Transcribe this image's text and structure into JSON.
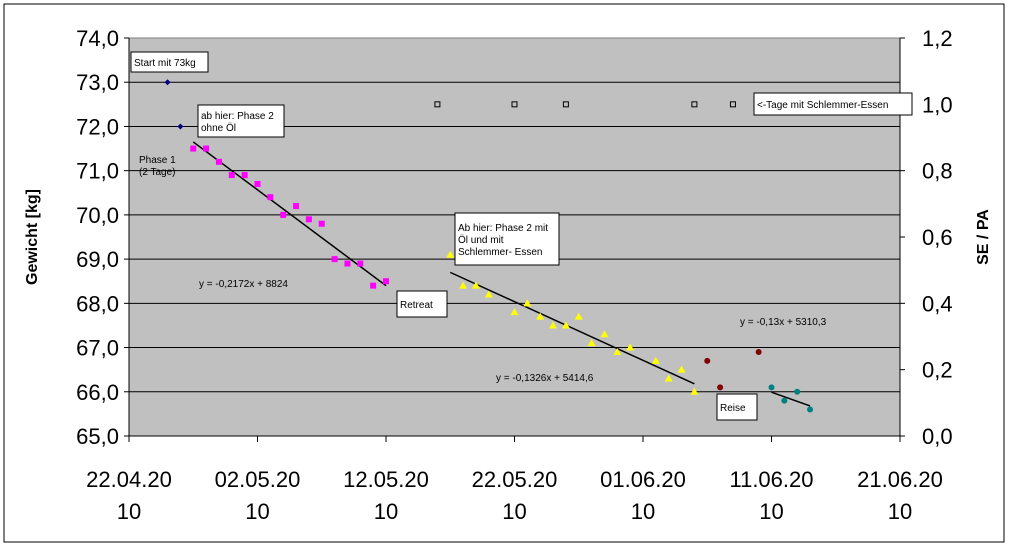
{
  "chart_data": {
    "type": "scatter",
    "title": "",
    "xlabel": "",
    "ylabel": "Gewicht [kg]",
    "y2label": "SE / PA",
    "xlim": [
      "2010-04-22",
      "2010-06-21"
    ],
    "ylim": [
      65.0,
      74.0
    ],
    "y2lim": [
      0.0,
      1.2
    ],
    "grid": true,
    "legend": "none",
    "x_ticks": [
      {
        "value": "2010-04-22",
        "line1": "22.04.20",
        "line2": "10"
      },
      {
        "value": "2010-05-02",
        "line1": "02.05.20",
        "line2": "10"
      },
      {
        "value": "2010-05-12",
        "line1": "12.05.20",
        "line2": "10"
      },
      {
        "value": "2010-05-22",
        "line1": "22.05.20",
        "line2": "10"
      },
      {
        "value": "2010-06-01",
        "line1": "01.06.20",
        "line2": "10"
      },
      {
        "value": "2010-06-11",
        "line1": "11.06.20",
        "line2": "10"
      },
      {
        "value": "2010-06-21",
        "line1": "21.06.20",
        "line2": "10"
      }
    ],
    "y_ticks": [
      "65,0",
      "66,0",
      "67,0",
      "68,0",
      "69,0",
      "70,0",
      "71,0",
      "72,0",
      "73,0",
      "74,0"
    ],
    "y2_ticks": [
      "0,0",
      "0,2",
      "0,4",
      "0,6",
      "0,8",
      "1,0",
      "1,2"
    ],
    "series": [
      {
        "marker": "diamond",
        "color": "#000080",
        "axis": "y",
        "points": [
          [
            "2010-04-25",
            73.0
          ],
          [
            "2010-04-26",
            72.0
          ]
        ]
      },
      {
        "marker": "square",
        "color": "#ff00ff",
        "axis": "y",
        "points": [
          [
            "2010-04-27",
            71.5
          ],
          [
            "2010-04-28",
            71.5
          ],
          [
            "2010-04-29",
            71.2
          ],
          [
            "2010-04-30",
            70.9
          ],
          [
            "2010-05-01",
            70.9
          ],
          [
            "2010-05-02",
            70.7
          ],
          [
            "2010-05-03",
            70.4
          ],
          [
            "2010-05-04",
            70.0
          ],
          [
            "2010-05-05",
            70.2
          ],
          [
            "2010-05-06",
            69.9
          ],
          [
            "2010-05-07",
            69.8
          ],
          [
            "2010-05-08",
            69.0
          ],
          [
            "2010-05-09",
            68.9
          ],
          [
            "2010-05-10",
            68.9
          ],
          [
            "2010-05-11",
            68.4
          ],
          [
            "2010-05-12",
            68.5
          ]
        ]
      },
      {
        "marker": "triangle",
        "color": "#ffff00",
        "axis": "y",
        "points": [
          [
            "2010-05-17",
            69.1
          ],
          [
            "2010-05-18",
            68.4
          ],
          [
            "2010-05-19",
            68.4
          ],
          [
            "2010-05-20",
            68.2
          ],
          [
            "2010-05-22",
            67.8
          ],
          [
            "2010-05-23",
            68.0
          ],
          [
            "2010-05-24",
            67.7
          ],
          [
            "2010-05-25",
            67.5
          ],
          [
            "2010-05-26",
            67.5
          ],
          [
            "2010-05-27",
            67.7
          ],
          [
            "2010-05-28",
            67.1
          ],
          [
            "2010-05-29",
            67.3
          ],
          [
            "2010-05-30",
            66.9
          ],
          [
            "2010-05-31",
            67.0
          ],
          [
            "2010-06-02",
            66.7
          ],
          [
            "2010-06-03",
            66.3
          ],
          [
            "2010-06-04",
            66.5
          ],
          [
            "2010-06-05",
            66.0
          ]
        ]
      },
      {
        "marker": "circle",
        "color": "#800000",
        "axis": "y",
        "points": [
          [
            "2010-06-06",
            66.7
          ],
          [
            "2010-06-07",
            66.1
          ],
          [
            "2010-06-10",
            66.9
          ]
        ]
      },
      {
        "marker": "circle",
        "color": "#008080",
        "axis": "y",
        "points": [
          [
            "2010-06-11",
            66.1
          ],
          [
            "2010-06-12",
            65.8
          ],
          [
            "2010-06-13",
            66.0
          ],
          [
            "2010-06-14",
            65.6
          ]
        ]
      },
      {
        "marker": "open-square",
        "color": "#000000",
        "axis": "y2",
        "points": [
          [
            "2010-05-16",
            1.0
          ],
          [
            "2010-05-22",
            1.0
          ],
          [
            "2010-05-26",
            1.0
          ],
          [
            "2010-06-05",
            1.0
          ],
          [
            "2010-06-08",
            1.0
          ]
        ]
      }
    ],
    "trendlines": [
      {
        "from": [
          "2010-04-27",
          71.65
        ],
        "to": [
          "2010-05-12",
          68.4
        ]
      },
      {
        "from": [
          "2010-05-17",
          68.7
        ],
        "to": [
          "2010-06-05",
          66.18
        ]
      },
      {
        "from": [
          "2010-06-11",
          65.99
        ],
        "to": [
          "2010-06-14",
          65.68
        ]
      }
    ],
    "annotations": [
      {
        "id": "start",
        "lines": [
          "Start mit 73kg"
        ],
        "boxed": true
      },
      {
        "id": "phase2-ohne",
        "lines": [
          "ab hier: Phase 2",
          "ohne Öl"
        ],
        "boxed": true
      },
      {
        "id": "phase1",
        "lines": [
          "Phase 1",
          "(2 Tage)"
        ],
        "boxed": false
      },
      {
        "id": "eq1",
        "lines": [
          "y = -0,2172x + 8824"
        ],
        "boxed": false
      },
      {
        "id": "retreat",
        "lines": [
          "Retreat"
        ],
        "boxed": true
      },
      {
        "id": "phase2-mit",
        "lines": [
          "Ab hier: Phase 2 mit",
          "Öl und mit",
          "Schlemmer- Essen"
        ],
        "boxed": true
      },
      {
        "id": "eq2",
        "lines": [
          "y = -0,1326x + 5414,6"
        ],
        "boxed": false
      },
      {
        "id": "eq3",
        "lines": [
          "y = -0,13x + 5310,3"
        ],
        "boxed": false
      },
      {
        "id": "reise",
        "lines": [
          "Reise"
        ],
        "boxed": true
      },
      {
        "id": "se-label",
        "lines": [
          "<-Tage mit Schlemmer-Essen"
        ],
        "boxed": true
      }
    ]
  }
}
